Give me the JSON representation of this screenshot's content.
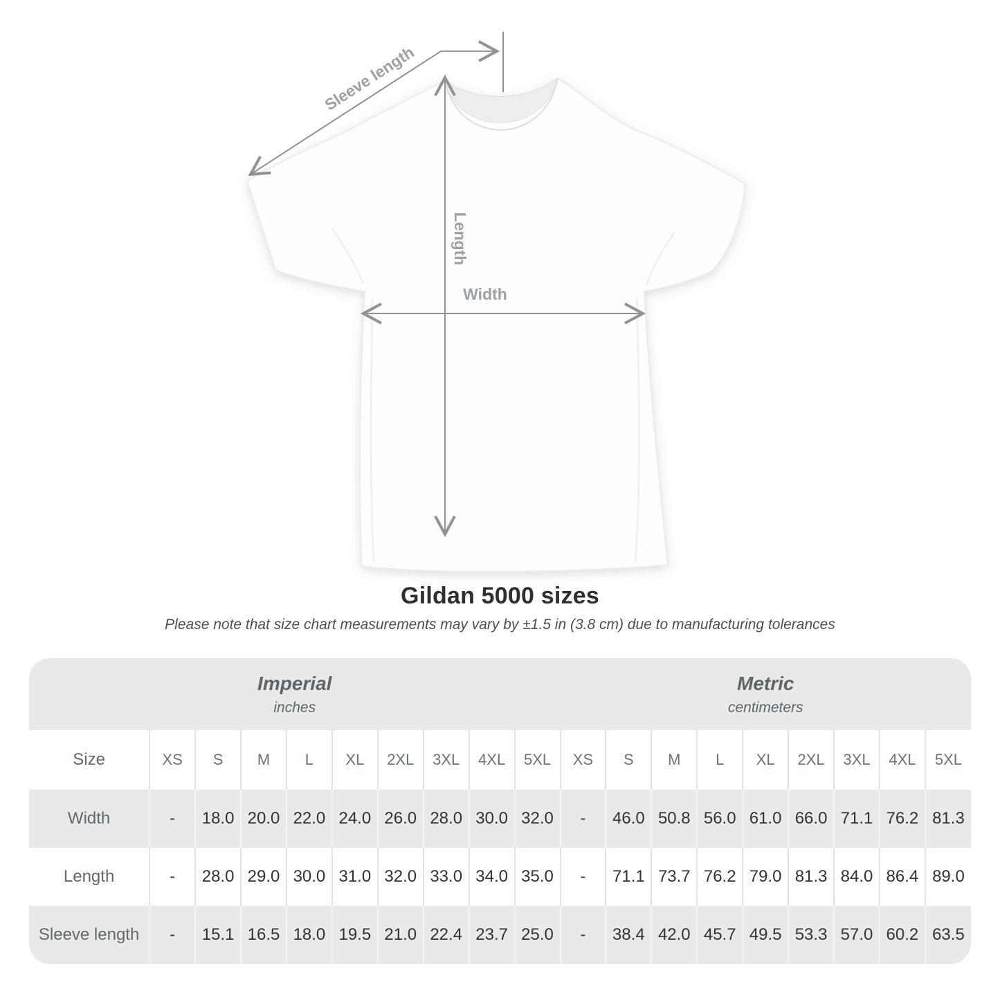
{
  "diagram": {
    "sleeve_length_label": "Sleeve length",
    "length_label": "Length",
    "width_label": "Width"
  },
  "heading": {
    "title": "Gildan 5000 sizes",
    "subtitle": "Please note that size chart measurements may vary by ±1.5 in (3.8 cm) due to manufacturing tolerances"
  },
  "table": {
    "size_header_label": "Size",
    "unit_groups": [
      {
        "name": "Imperial",
        "unit": "inches"
      },
      {
        "name": "Metric",
        "unit": "centimeters"
      }
    ],
    "sizes": [
      "XS",
      "S",
      "M",
      "L",
      "XL",
      "2XL",
      "3XL",
      "4XL",
      "5XL"
    ],
    "rows": [
      {
        "label": "Width",
        "imperial": [
          "-",
          "18.0",
          "20.0",
          "22.0",
          "24.0",
          "26.0",
          "28.0",
          "30.0",
          "32.0"
        ],
        "metric": [
          "-",
          "46.0",
          "50.8",
          "56.0",
          "61.0",
          "66.0",
          "71.1",
          "76.2",
          "81.3"
        ]
      },
      {
        "label": "Length",
        "imperial": [
          "-",
          "28.0",
          "29.0",
          "30.0",
          "31.0",
          "32.0",
          "33.0",
          "34.0",
          "35.0"
        ],
        "metric": [
          "-",
          "71.1",
          "73.7",
          "76.2",
          "79.0",
          "81.3",
          "84.0",
          "86.4",
          "89.0"
        ]
      },
      {
        "label": "Sleeve length",
        "imperial": [
          "-",
          "15.1",
          "16.5",
          "18.0",
          "19.5",
          "21.0",
          "22.4",
          "23.7",
          "25.0"
        ],
        "metric": [
          "-",
          "38.4",
          "42.0",
          "45.7",
          "49.5",
          "53.3",
          "57.0",
          "60.2",
          "63.5"
        ]
      }
    ]
  },
  "colors": {
    "band_gray": "#e9e9e9",
    "row_stripe_gray": "#e9e9e9",
    "separator_on_white": "#e2e2e2",
    "separator_on_gray": "#f3f3f3",
    "annotation_line_gray": "#8d9396",
    "annotation_label_gray": "#9ba1a4",
    "number_text": "#313335",
    "muted_header_text": "#5d6568"
  }
}
